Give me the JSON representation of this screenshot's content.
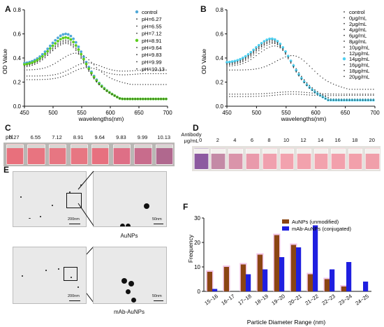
{
  "panels": {
    "A": "A",
    "B": "B",
    "C": "C",
    "D": "D",
    "E": "E",
    "F": "F"
  },
  "chart_data": [
    {
      "type": "scatter",
      "panel": "A",
      "xlabel": "wavelengths(nm)",
      "ylabel": "OD Value",
      "xlim": [
        450,
        700
      ],
      "ylim": [
        0.0,
        0.8
      ],
      "xticks": [
        "450",
        "500",
        "550",
        "600",
        "650",
        "700"
      ],
      "yticks": [
        "0.0",
        "0.2",
        "0.4",
        "0.6",
        "0.8"
      ],
      "legend_position": "top-right",
      "legend": [
        "control",
        "pH=6.27",
        "pH=6.55",
        "pH=7.12",
        "pH=8.91",
        "pH=9.64",
        "pH=9.83",
        "pH=9.99",
        "pH=10.13"
      ],
      "series_colors": [
        "#4fa8d8",
        "#333333",
        "#333333",
        "#333333",
        "#5ccd1e",
        "#333333",
        "#333333",
        "#333333",
        "#333333"
      ],
      "series_peak": [
        {
          "name": "control",
          "peak_x": 522,
          "peak_y": 0.6,
          "base_y": 0.35,
          "tail_y": 0.06
        },
        {
          "name": "pH=6.27",
          "peak_x": 560,
          "peak_y": 0.36,
          "base_y": 0.25,
          "tail_y": 0.3
        },
        {
          "name": "pH=6.55",
          "peak_x": 560,
          "peak_y": 0.32,
          "base_y": 0.22,
          "tail_y": 0.27
        },
        {
          "name": "pH=7.12",
          "peak_x": 540,
          "peak_y": 0.44,
          "base_y": 0.3,
          "tail_y": 0.18
        },
        {
          "name": "pH=8.91",
          "peak_x": 522,
          "peak_y": 0.57,
          "base_y": 0.34,
          "tail_y": 0.06
        },
        {
          "name": "pH=9.64",
          "peak_x": 522,
          "peak_y": 0.55,
          "base_y": 0.33,
          "tail_y": 0.06
        },
        {
          "name": "pH=9.83",
          "peak_x": 522,
          "peak_y": 0.54,
          "base_y": 0.33,
          "tail_y": 0.06
        },
        {
          "name": "pH=9.99",
          "peak_x": 522,
          "peak_y": 0.53,
          "base_y": 0.32,
          "tail_y": 0.06
        },
        {
          "name": "pH=10.13",
          "peak_x": 522,
          "peak_y": 0.52,
          "base_y": 0.32,
          "tail_y": 0.06
        }
      ]
    },
    {
      "type": "scatter",
      "panel": "B",
      "xlabel": "wavelengths(nm)",
      "ylabel": "OD Value",
      "xlim": [
        450,
        700
      ],
      "ylim": [
        0.0,
        0.8
      ],
      "xticks": [
        "450",
        "500",
        "550",
        "600",
        "650",
        "700"
      ],
      "yticks": [
        "0.0",
        "0.2",
        "0.4",
        "0.6",
        "0.8"
      ],
      "legend_position": "top-right",
      "legend": [
        "control",
        "0μg/mL",
        "2μg/mL",
        "4μg/mL",
        "6μg/mL",
        "8μg/mL",
        "10μg/mL",
        "12μg/mL",
        "14μg/mL",
        "16μg/mL",
        "18μg/mL",
        "20μg/mL"
      ],
      "series_colors": [
        "#333333",
        "#333333",
        "#333333",
        "#333333",
        "#333333",
        "#333333",
        "#333333",
        "#333333",
        "#4fd0f0",
        "#333333",
        "#333333",
        "#333333"
      ],
      "series_peak": [
        {
          "name": "control",
          "peak_x": 525,
          "peak_y": 0.56,
          "base_y": 0.36,
          "tail_y": 0.05
        },
        {
          "name": "0μg/mL",
          "peak_x": 560,
          "peak_y": 0.12,
          "base_y": 0.1,
          "tail_y": 0.1
        },
        {
          "name": "2μg/mL",
          "peak_x": 560,
          "peak_y": 0.1,
          "base_y": 0.08,
          "tail_y": 0.09
        },
        {
          "name": "4μg/mL",
          "peak_x": 560,
          "peak_y": 0.42,
          "base_y": 0.3,
          "tail_y": 0.14
        },
        {
          "name": "6μg/mL",
          "peak_x": 530,
          "peak_y": 0.5,
          "base_y": 0.33,
          "tail_y": 0.06
        },
        {
          "name": "8μg/mL",
          "peak_x": 528,
          "peak_y": 0.52,
          "base_y": 0.34,
          "tail_y": 0.06
        },
        {
          "name": "10μg/mL",
          "peak_x": 526,
          "peak_y": 0.53,
          "base_y": 0.34,
          "tail_y": 0.05
        },
        {
          "name": "12μg/mL",
          "peak_x": 526,
          "peak_y": 0.54,
          "base_y": 0.35,
          "tail_y": 0.05
        },
        {
          "name": "14μg/mL",
          "peak_x": 525,
          "peak_y": 0.56,
          "base_y": 0.36,
          "tail_y": 0.05
        },
        {
          "name": "16μg/mL",
          "peak_x": 525,
          "peak_y": 0.55,
          "base_y": 0.35,
          "tail_y": 0.05
        },
        {
          "name": "18μg/mL",
          "peak_x": 525,
          "peak_y": 0.54,
          "base_y": 0.35,
          "tail_y": 0.05
        },
        {
          "name": "20μg/mL",
          "peak_x": 525,
          "peak_y": 0.53,
          "base_y": 0.34,
          "tail_y": 0.05
        }
      ]
    },
    {
      "type": "bar",
      "panel": "F",
      "xlabel": "Particle Diameter Range (nm)",
      "ylabel": "Frequency",
      "ylim": [
        0,
        30
      ],
      "yticks": [
        "0",
        "10",
        "20",
        "30"
      ],
      "legend_position": "top-right",
      "categories": [
        "15~16",
        "16~17",
        "17~18",
        "18~19",
        "19~20",
        "20~21",
        "21~22",
        "22~23",
        "23~24",
        "24~25"
      ],
      "series": [
        {
          "name": "AuNPs (unmodified)",
          "color": "#8b4513",
          "values": [
            8,
            10,
            11,
            15,
            23,
            19,
            7,
            5,
            2,
            0
          ]
        },
        {
          "name": "mAb-AuNPs (conjugated)",
          "color": "#1f1fe0",
          "values": [
            1,
            0,
            7,
            9,
            14,
            18,
            27,
            9,
            12,
            4
          ]
        }
      ]
    }
  ],
  "photo_c": {
    "label_prefix": "pH",
    "vials": [
      "6.27",
      "6.55",
      "7.12",
      "8.91",
      "9.64",
      "9.83",
      "9.99",
      "10.13"
    ],
    "colors": [
      "#e8707c",
      "#e87480",
      "#e77682",
      "#e77682",
      "#e7707f",
      "#de6f86",
      "#c86c8c",
      "#b0688e"
    ]
  },
  "photo_d": {
    "label_line1": "Antibody",
    "label_line2": "μg/mL",
    "vials": [
      "0",
      "2",
      "4",
      "6",
      "8",
      "10",
      "12",
      "14",
      "16",
      "18",
      "20"
    ],
    "colors": [
      "#8d5aa0",
      "#c48aa6",
      "#da94aa",
      "#e99aab",
      "#f0a0ae",
      "#f2a2ae",
      "#f2a2ad",
      "#f2a2ad",
      "#f2a0ac",
      "#f2a0ab",
      "#f09faa"
    ]
  },
  "tem": {
    "top_caption": "AuNPs",
    "bottom_caption": "mAb-AuNPs",
    "scale_large": "200nm",
    "scale_small": "50nm"
  }
}
